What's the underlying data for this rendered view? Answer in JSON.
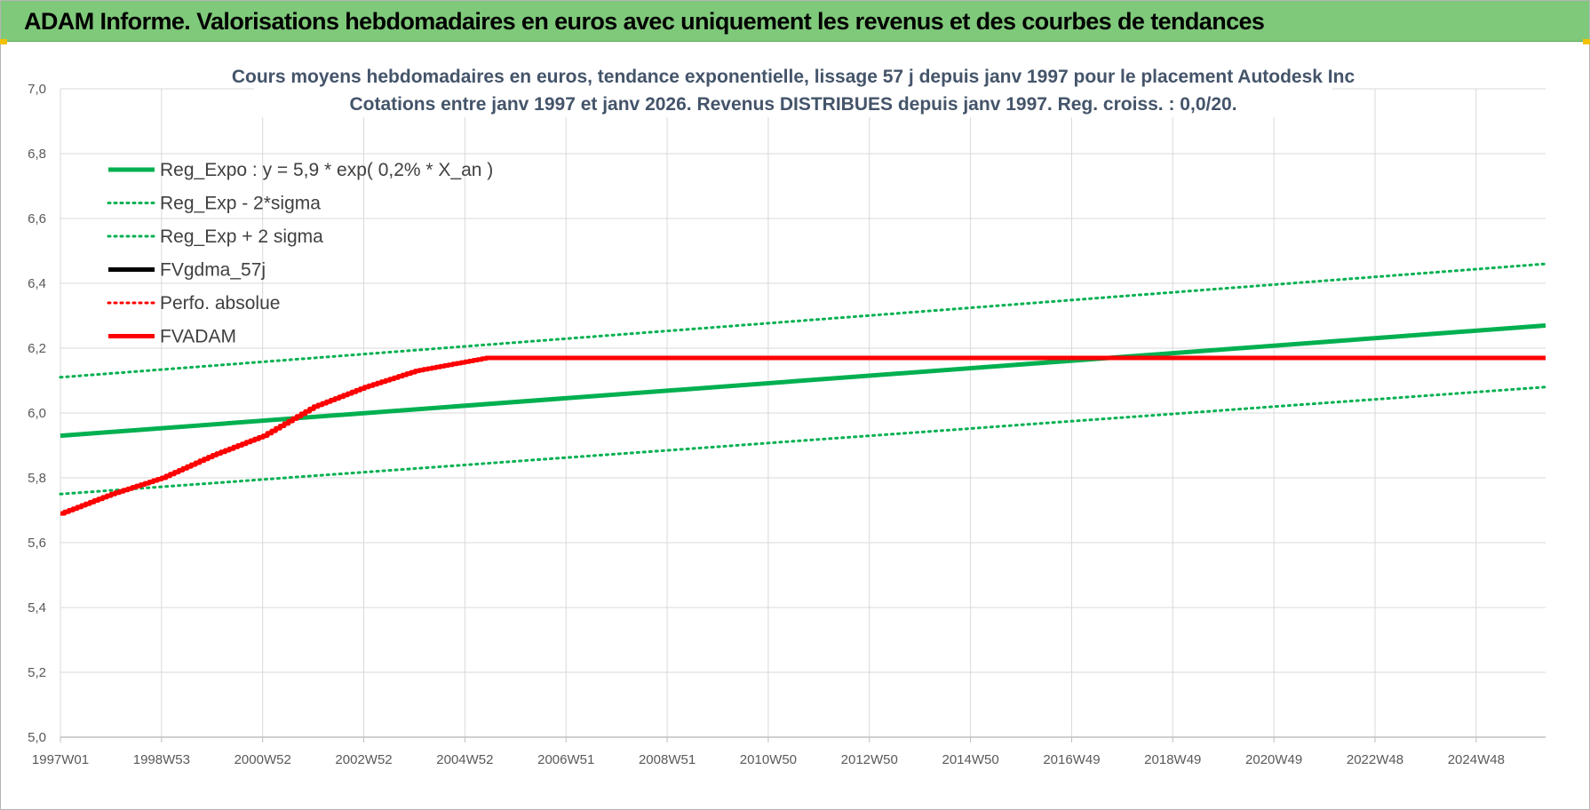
{
  "header": {
    "title": "ADAM Informe. Valorisations hebdomadaires en euros avec uniquement les revenus et des courbes de tendances"
  },
  "colors": {
    "banner": "#7fc97a",
    "green_series": "#00b050",
    "red_series": "#ff0000",
    "black_series": "#000000",
    "title_text": "#44546a",
    "grid": "#d9d9d9"
  },
  "chart_data": {
    "type": "line",
    "title_lines": [
      "Cours moyens hebdomadaires en euros, tendance exponentielle, lissage 57 j depuis janv 1997 pour le placement Autodesk Inc",
      "Cotations entre janv 1997 et janv 2026. Revenus DISTRIBUES depuis janv 1997. Reg. croiss. : 0,0/20."
    ],
    "x_tick_labels": [
      "1997W01",
      "1998W53",
      "2000W52",
      "2002W52",
      "2004W52",
      "2006W51",
      "2008W51",
      "2010W50",
      "2012W50",
      "2014W50",
      "2016W49",
      "2018W49",
      "2020W49",
      "2022W48",
      "2024W48"
    ],
    "x_range_years": [
      1997.0,
      2026.3
    ],
    "ylim": [
      5.0,
      7.0
    ],
    "y_ticks": [
      "5,0",
      "5,2",
      "5,4",
      "5,6",
      "5,8",
      "6,0",
      "6,2",
      "6,4",
      "6,6",
      "6,8",
      "7,0"
    ],
    "grid": true,
    "legend_position": "top-left",
    "legend": [
      {
        "label": "Reg_Expo : y = 5,9 * exp( 0,2% *  X_an )",
        "style": "solid",
        "color": "#00b050"
      },
      {
        "label": "Reg_Exp - 2*sigma",
        "style": "dotted",
        "color": "#00b050"
      },
      {
        "label": "Reg_Exp + 2 sigma",
        "style": "dotted",
        "color": "#00b050"
      },
      {
        "label": "FVgdma_57j",
        "style": "solid",
        "color": "#000000"
      },
      {
        "label": "Perfo. absolue",
        "style": "dotted",
        "color": "#ff0000"
      },
      {
        "label": "FVADAM",
        "style": "solid",
        "color": "#ff0000"
      }
    ],
    "series": [
      {
        "name": "Reg_Expo : y = 5,9 * exp( 0,2% *  X_an )",
        "style": "solid",
        "color": "#00b050",
        "x": [
          1997.0,
          2026.3
        ],
        "y": [
          5.93,
          6.27
        ]
      },
      {
        "name": "Reg_Exp - 2*sigma",
        "style": "dotted",
        "color": "#00b050",
        "x": [
          1997.0,
          2026.3
        ],
        "y": [
          5.75,
          6.08
        ]
      },
      {
        "name": "Reg_Exp + 2 sigma",
        "style": "dotted",
        "color": "#00b050",
        "x": [
          1997.0,
          2026.3
        ],
        "y": [
          6.11,
          6.46
        ]
      },
      {
        "name": "FVADAM",
        "style": "solid-stepped",
        "color": "#ff0000",
        "x": [
          1997.0,
          1998.0,
          1999.0,
          2000.0,
          2001.0,
          2002.0,
          2003.0,
          2004.0,
          2005.4,
          2026.3
        ],
        "y": [
          5.69,
          5.75,
          5.8,
          5.87,
          5.93,
          6.02,
          6.08,
          6.13,
          6.17,
          6.17
        ]
      }
    ]
  }
}
